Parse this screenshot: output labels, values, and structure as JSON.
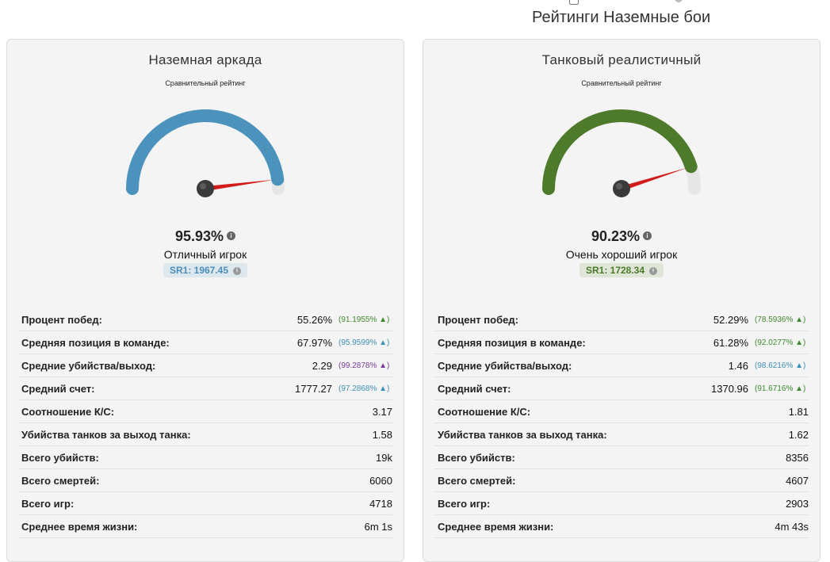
{
  "header": {
    "title": "Рейтинги Наземные бои"
  },
  "cards": [
    {
      "title": "Наземная аркада",
      "gauge_subtitle": "Сравнительный рейтинг",
      "gauge_color": "#4b93bd",
      "gauge_value_fraction": 0.9593,
      "percent": "95.93%",
      "rank": "Отличный игрок",
      "sr": "SR1: 1967.45",
      "stats": [
        {
          "label": "Процент побед:",
          "value": "55.26%",
          "rank": "(91.1955% ▲)",
          "rank_color": "green"
        },
        {
          "label": "Средняя позиция в команде:",
          "value": "67.97%",
          "rank": "(95.9599% ▲)",
          "rank_color": "blue"
        },
        {
          "label": "Средние убийства/выход:",
          "value": "2.29",
          "rank": "(99.2878% ▲)",
          "rank_color": "purple"
        },
        {
          "label": "Средний счет:",
          "value": "1777.27",
          "rank": "(97.2868% ▲)",
          "rank_color": "blue"
        },
        {
          "label": "Соотношение К/С:",
          "value": "3.17",
          "rank": "",
          "rank_color": ""
        },
        {
          "label": "Убийства танков за выход танка:",
          "value": "1.58",
          "rank": "",
          "rank_color": ""
        },
        {
          "label": "Всего убийств:",
          "value": "19k",
          "rank": "",
          "rank_color": ""
        },
        {
          "label": "Всего смертей:",
          "value": "6060",
          "rank": "",
          "rank_color": ""
        },
        {
          "label": "Всего игр:",
          "value": "4718",
          "rank": "",
          "rank_color": ""
        },
        {
          "label": "Среднее время жизни:",
          "value": "6m 1s",
          "rank": "",
          "rank_color": ""
        }
      ]
    },
    {
      "title": "Танковый реалистичный",
      "gauge_subtitle": "Сравнительный рейтинг",
      "gauge_color": "#4e7a2c",
      "gauge_value_fraction": 0.9023,
      "percent": "90.23%",
      "rank": "Очень хороший игрок",
      "sr": "SR1: 1728.34",
      "stats": [
        {
          "label": "Процент побед:",
          "value": "52.29%",
          "rank": "(78.5936% ▲)",
          "rank_color": "green"
        },
        {
          "label": "Средняя позиция в команде:",
          "value": "61.28%",
          "rank": "(92.0277% ▲)",
          "rank_color": "green"
        },
        {
          "label": "Средние убийства/выход:",
          "value": "1.46",
          "rank": "(98.6216% ▲)",
          "rank_color": "blue"
        },
        {
          "label": "Средний счет:",
          "value": "1370.96",
          "rank": "(91.6716% ▲)",
          "rank_color": "green"
        },
        {
          "label": "Соотношение К/С:",
          "value": "1.81",
          "rank": "",
          "rank_color": ""
        },
        {
          "label": "Убийства танков за выход танка:",
          "value": "1.62",
          "rank": "",
          "rank_color": ""
        },
        {
          "label": "Всего убийств:",
          "value": "8356",
          "rank": "",
          "rank_color": ""
        },
        {
          "label": "Всего смертей:",
          "value": "4607",
          "rank": "",
          "rank_color": ""
        },
        {
          "label": "Всего игр:",
          "value": "2903",
          "rank": "",
          "rank_color": ""
        },
        {
          "label": "Среднее время жизни:",
          "value": "4m 43s",
          "rank": "",
          "rank_color": ""
        }
      ]
    }
  ]
}
